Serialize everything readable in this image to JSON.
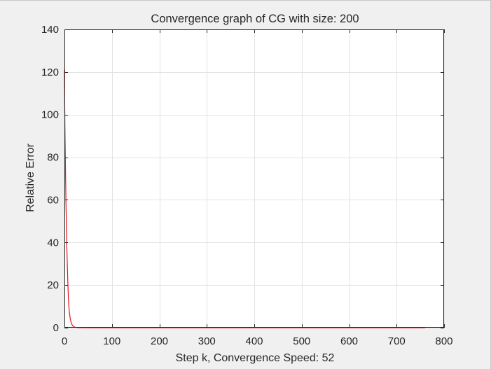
{
  "chart_data": {
    "type": "line",
    "title": "Convergence graph of CG with size: 200",
    "xlabel": "Step k, Convergence Speed: 52",
    "ylabel": "Relative Error",
    "xlim": [
      0,
      800
    ],
    "ylim": [
      0,
      140
    ],
    "xticks": [
      0,
      100,
      200,
      300,
      400,
      500,
      600,
      700,
      800
    ],
    "yticks": [
      0,
      20,
      40,
      60,
      80,
      100,
      120,
      140
    ],
    "grid": true,
    "colors": {
      "line": "#e8121f",
      "axes_bg": "#ffffff",
      "figure_bg": "#f0f0f0",
      "grid": "#e3e3e3",
      "axis": "#262626"
    },
    "series": [
      {
        "x": [
          0,
          1,
          2,
          3,
          4,
          5,
          6,
          7,
          8,
          9,
          10,
          12,
          14,
          16,
          18,
          20,
          25,
          30,
          40,
          50,
          60,
          100,
          200,
          300,
          400,
          500,
          600,
          700,
          760
        ],
        "y": [
          121,
          95,
          78,
          62,
          49,
          38,
          30,
          22,
          16,
          11,
          8,
          4.5,
          2.5,
          1.4,
          0.8,
          0.4,
          0.15,
          0.05,
          0.02,
          0.01,
          0,
          0,
          0,
          0,
          0,
          0,
          0,
          0,
          0
        ]
      }
    ]
  }
}
